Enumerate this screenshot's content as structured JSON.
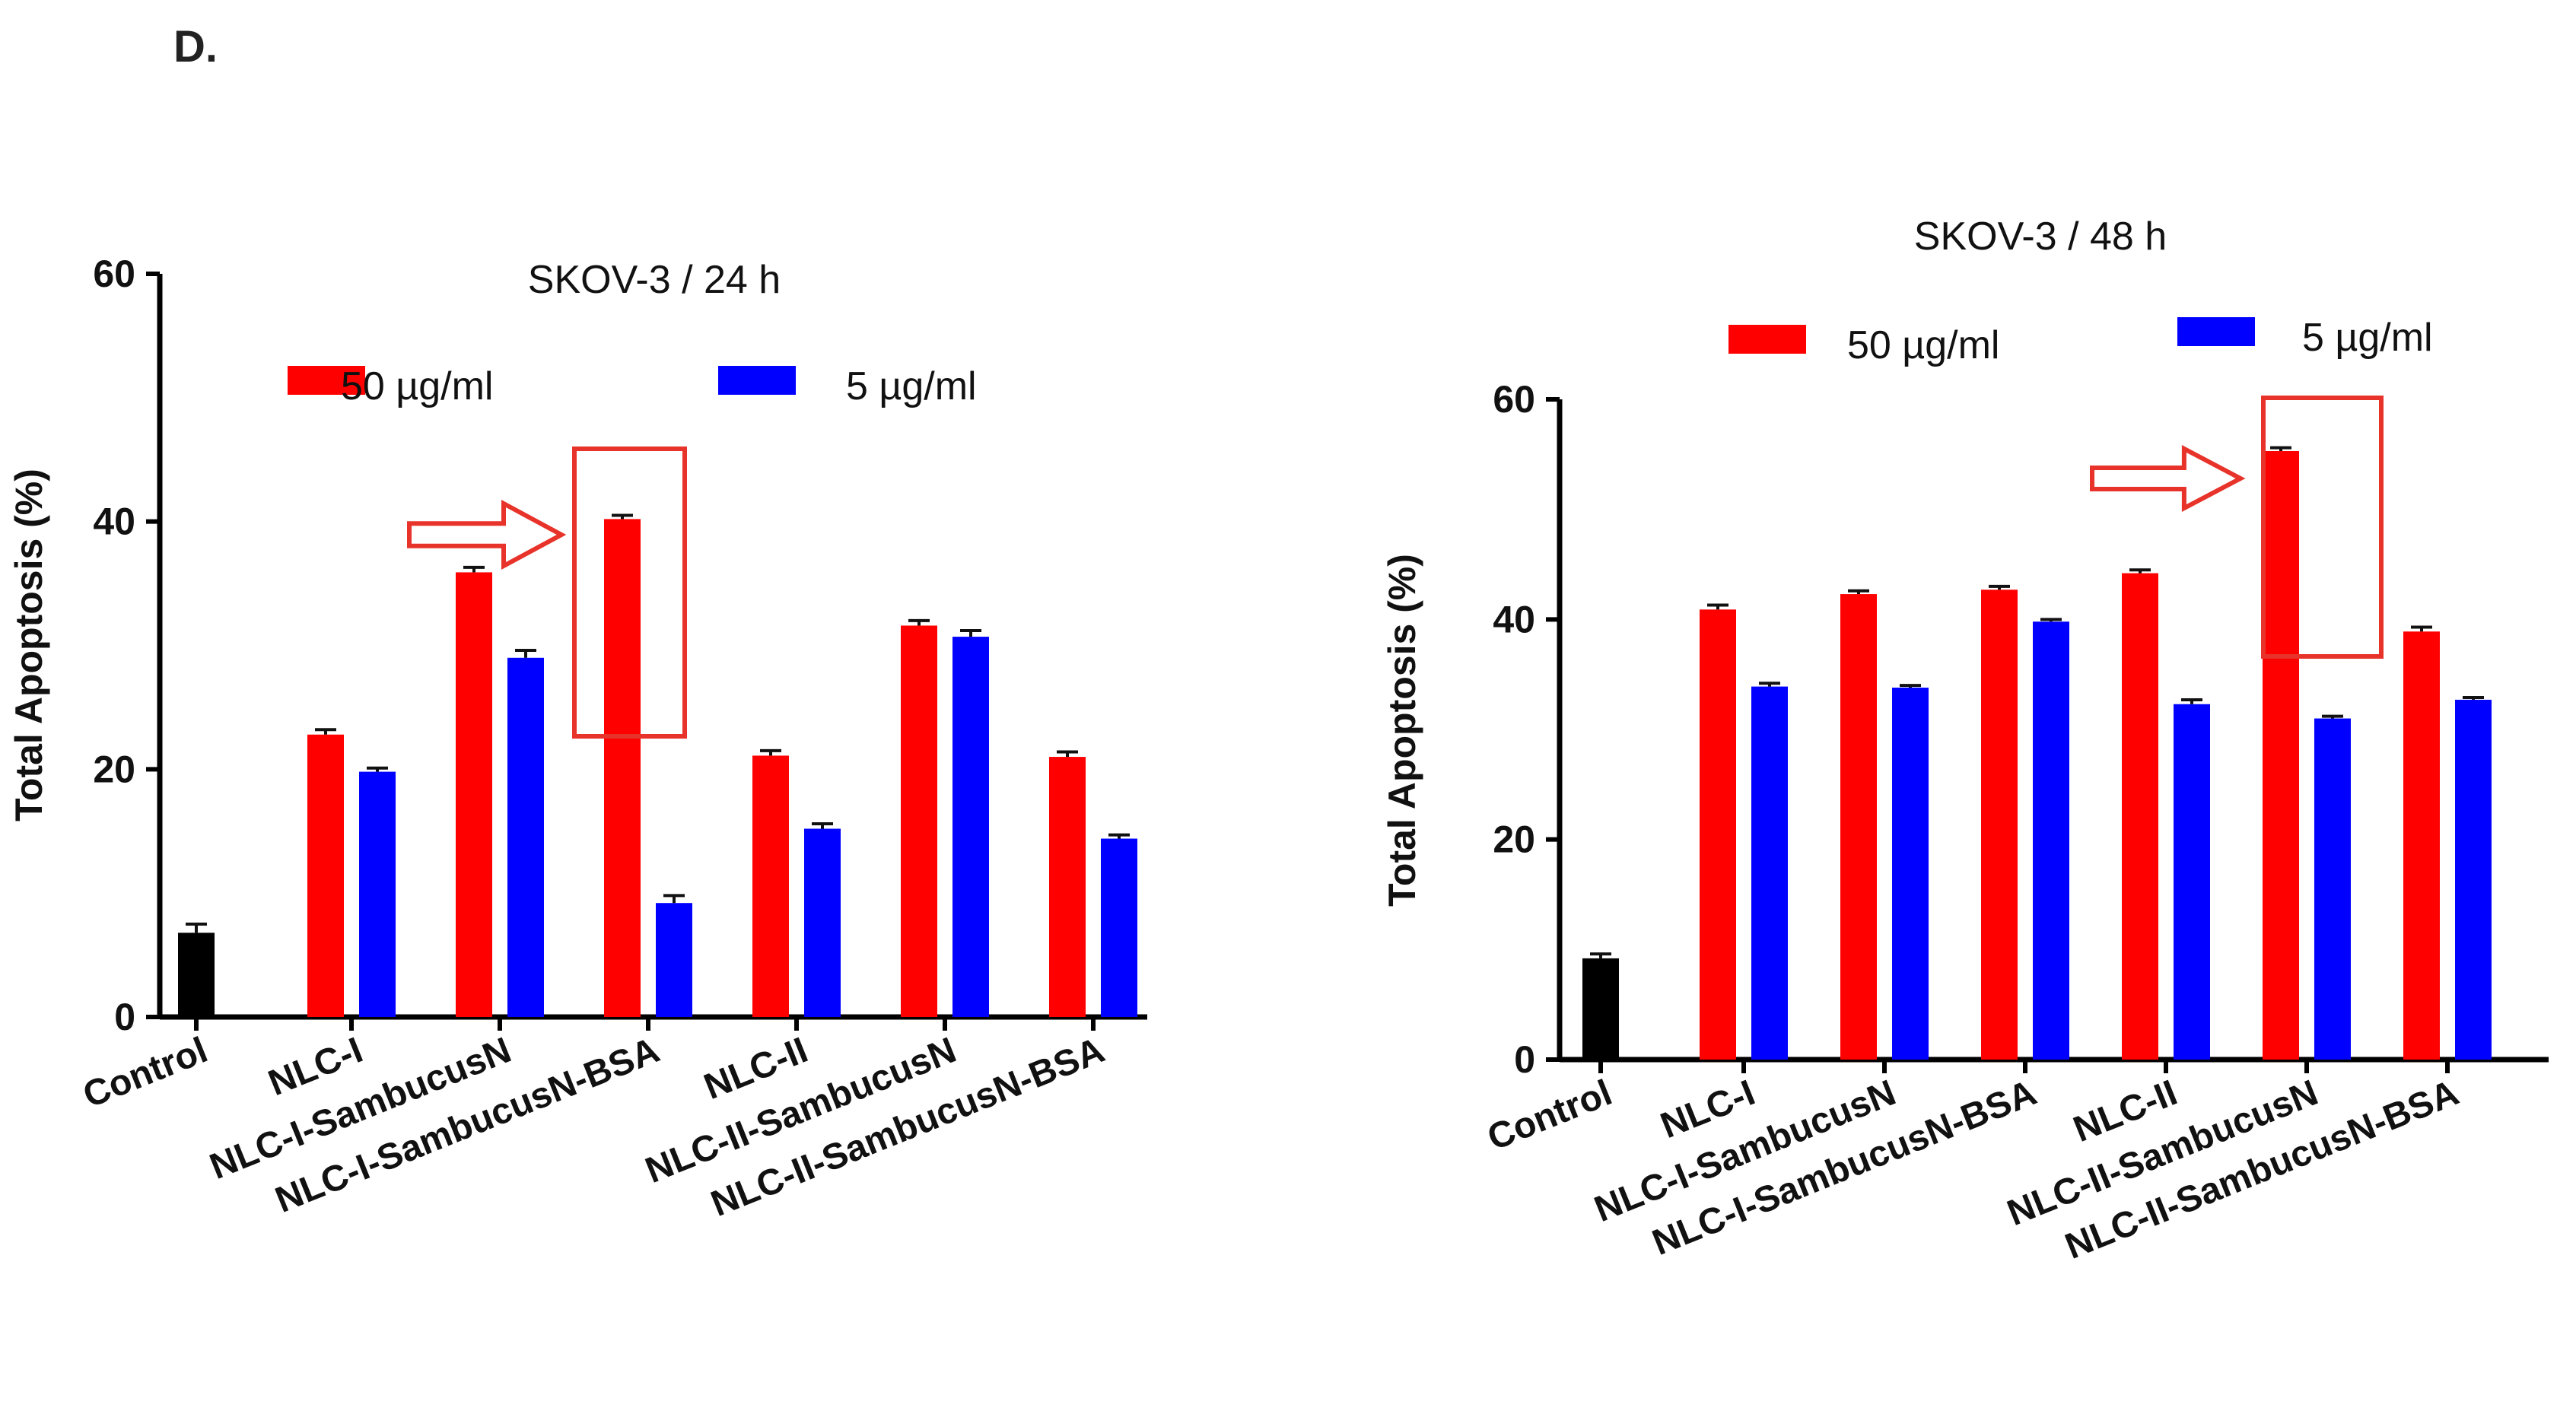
{
  "panel_label": "D.",
  "colors": {
    "high_dose": "#ff0000",
    "low_dose": "#0000ff",
    "control": "#000000",
    "highlight": "#e8332a"
  },
  "chart_data": [
    {
      "type": "bar",
      "title": "SKOV-3 / 24 h",
      "ylabel": "Total Apoptosis (%)",
      "xlabel": "",
      "ylim": [
        0,
        60
      ],
      "yticks": [
        0,
        20,
        40,
        60
      ],
      "grid": false,
      "legend_placement": "top",
      "categories": [
        "Control",
        "NLC-I",
        "NLC-I-SambucusN",
        "NLC-I-SambucusN-BSA",
        "NLC-II",
        "NLC-II-SambucusN",
        "NLC-II-SambucusN-BSA"
      ],
      "control": {
        "value": 6.8,
        "error": 0.7
      },
      "series": [
        {
          "name": "50 µg/ml",
          "values": [
            null,
            22.8,
            35.9,
            40.2,
            21.1,
            31.6,
            21.0
          ],
          "errors": [
            null,
            0.4,
            0.4,
            0.3,
            0.4,
            0.4,
            0.4
          ]
        },
        {
          "name": "5 µg/ml",
          "values": [
            null,
            19.8,
            29.0,
            9.2,
            15.2,
            30.7,
            14.4
          ],
          "errors": [
            null,
            0.3,
            0.6,
            0.6,
            0.4,
            0.5,
            0.3
          ]
        }
      ],
      "highlight": {
        "category_index": 3,
        "series_index": 0,
        "marker": "box-and-arrow"
      }
    },
    {
      "type": "bar",
      "title": "SKOV-3 / 48 h",
      "ylabel": "Total Apoptosis (%)",
      "xlabel": "",
      "ylim": [
        0,
        60
      ],
      "yticks": [
        0,
        20,
        40,
        60
      ],
      "grid": false,
      "legend_placement": "top",
      "categories": [
        "Control",
        "NLC-I",
        "NLC-I-SambucusN",
        "NLC-I-SambucusN-BSA",
        "NLC-II",
        "NLC-II-SambucusN",
        "NLC-II-SambucusN-BSA"
      ],
      "control": {
        "value": 9.2,
        "error": 0.4
      },
      "series": [
        {
          "name": "50 µg/ml",
          "values": [
            null,
            40.9,
            42.3,
            42.7,
            44.2,
            55.3,
            38.9
          ],
          "errors": [
            null,
            0.4,
            0.3,
            0.3,
            0.3,
            0.3,
            0.4
          ]
        },
        {
          "name": "5 µg/ml",
          "values": [
            null,
            33.9,
            33.8,
            39.8,
            32.3,
            31.0,
            32.7
          ],
          "errors": [
            null,
            0.3,
            0.2,
            0.2,
            0.4,
            0.2,
            0.2
          ]
        }
      ],
      "highlight": {
        "category_index": 5,
        "series_index": 0,
        "marker": "box-and-arrow"
      }
    }
  ]
}
